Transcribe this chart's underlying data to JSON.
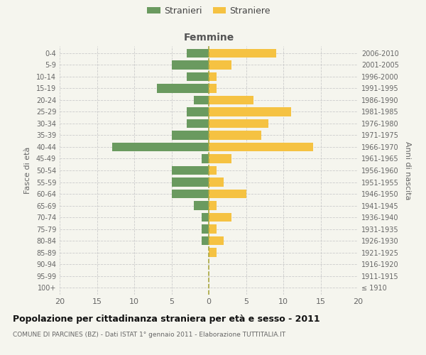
{
  "age_groups": [
    "100+",
    "95-99",
    "90-94",
    "85-89",
    "80-84",
    "75-79",
    "70-74",
    "65-69",
    "60-64",
    "55-59",
    "50-54",
    "45-49",
    "40-44",
    "35-39",
    "30-34",
    "25-29",
    "20-24",
    "15-19",
    "10-14",
    "5-9",
    "0-4"
  ],
  "birth_years": [
    "≤ 1910",
    "1911-1915",
    "1916-1920",
    "1921-1925",
    "1926-1930",
    "1931-1935",
    "1936-1940",
    "1941-1945",
    "1946-1950",
    "1951-1955",
    "1956-1960",
    "1961-1965",
    "1966-1970",
    "1971-1975",
    "1976-1980",
    "1981-1985",
    "1986-1990",
    "1991-1995",
    "1996-2000",
    "2001-2005",
    "2006-2010"
  ],
  "males": [
    0,
    0,
    0,
    0,
    1,
    1,
    1,
    2,
    5,
    5,
    5,
    1,
    13,
    5,
    3,
    3,
    2,
    7,
    3,
    5,
    3
  ],
  "females": [
    0,
    0,
    0,
    1,
    2,
    1,
    3,
    1,
    5,
    2,
    1,
    3,
    14,
    7,
    8,
    11,
    6,
    1,
    1,
    3,
    9
  ],
  "male_color": "#6a9a5f",
  "female_color": "#f5c242",
  "background_color": "#f5f5ee",
  "grid_color": "#cccccc",
  "center_line_color": "#aaa840",
  "title": "Popolazione per cittadinanza straniera per età e sesso - 2011",
  "subtitle": "COMUNE DI PARCINES (BZ) - Dati ISTAT 1° gennaio 2011 - Elaborazione TUTTITALIA.IT",
  "xlabel_right": "Femmine",
  "ylabel_left": "Fasce di età",
  "ylabel_right": "Anni di nascita",
  "legend_males": "Stranieri",
  "legend_females": "Straniere",
  "xlim": 20,
  "bar_height": 0.75
}
